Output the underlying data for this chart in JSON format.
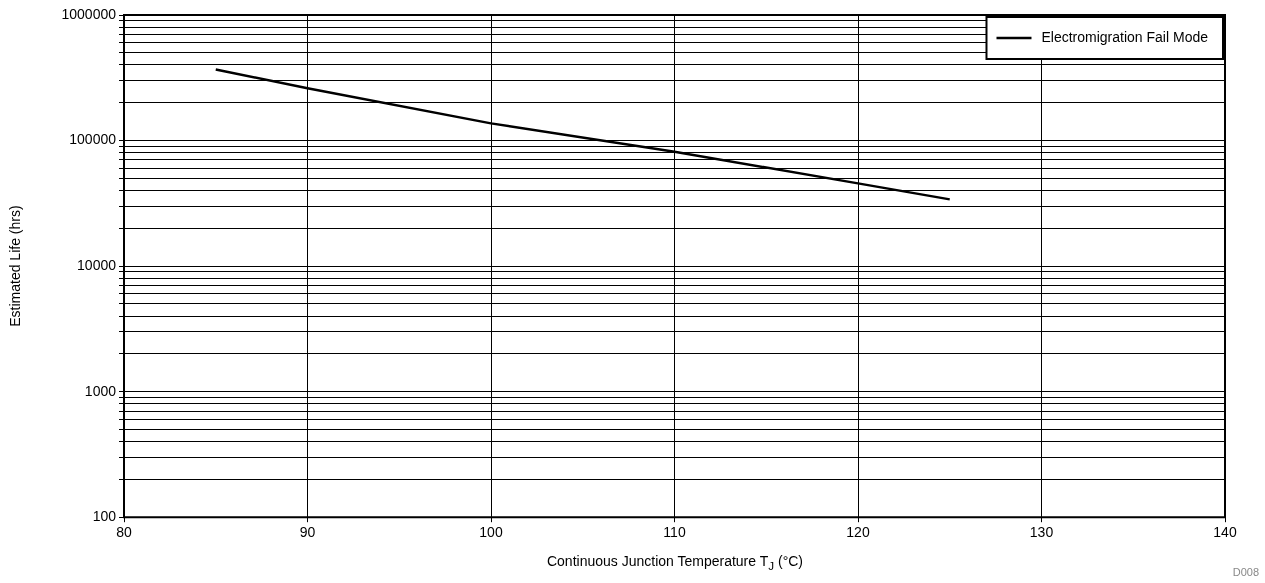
{
  "chart_data": {
    "type": "line",
    "xlabel": "Continuous Junction Temperature T$_{J}$ (°C)",
    "ylabel": "Estimated Life (hrs)",
    "annotations": [
      "D008"
    ],
    "x": [
      85,
      90,
      100,
      110,
      120,
      125
    ],
    "series": [
      {
        "name": "Electromigration Fail Mode",
        "color": "#000000",
        "values": [
          368000,
          261000,
          137000,
          81500,
          45600,
          34000
        ]
      }
    ],
    "log": "y",
    "xlim": [
      80,
      140
    ],
    "xticks": [
      80,
      90,
      100,
      110,
      120,
      130,
      140
    ],
    "ylim": [
      100,
      1000000
    ],
    "yticks": [
      100,
      {
        "value": 200,
        "label": null
      },
      {
        "value": 300,
        "label": null
      },
      {
        "value": 400,
        "label": null
      },
      {
        "value": 500,
        "label": null
      },
      {
        "value": 600,
        "label": null
      },
      {
        "value": 700,
        "label": null
      },
      {
        "value": 800,
        "label": null
      },
      {
        "value": 900,
        "label": null
      },
      1000,
      {
        "value": 2000,
        "label": null
      },
      {
        "value": 3000,
        "label": null
      },
      {
        "value": 4000,
        "label": null
      },
      {
        "value": 5000,
        "label": null
      },
      {
        "value": 6000,
        "label": null
      },
      {
        "value": 7000,
        "label": null
      },
      {
        "value": 8000,
        "label": null
      },
      {
        "value": 9000,
        "label": null
      },
      10000,
      {
        "value": 20000,
        "label": null
      },
      {
        "value": 30000,
        "label": null
      },
      {
        "value": 40000,
        "label": null
      },
      {
        "value": 50000,
        "label": null
      },
      {
        "value": 60000,
        "label": null
      },
      {
        "value": 70000,
        "label": null
      },
      {
        "value": 80000,
        "label": null
      },
      {
        "value": 90000,
        "label": null
      },
      100000,
      {
        "value": 200000,
        "label": null
      },
      {
        "value": 300000,
        "label": null
      },
      {
        "value": 400000,
        "label": null
      },
      {
        "value": 500000,
        "label": null
      },
      {
        "value": 600000,
        "label": null
      },
      {
        "value": 700000,
        "label": null
      },
      {
        "value": 800000,
        "label": null
      },
      {
        "value": 900000,
        "label": null
      },
      1000000
    ],
    "grid": true,
    "legend": "top right",
    "marker": "none",
    "line_style": "solid"
  }
}
